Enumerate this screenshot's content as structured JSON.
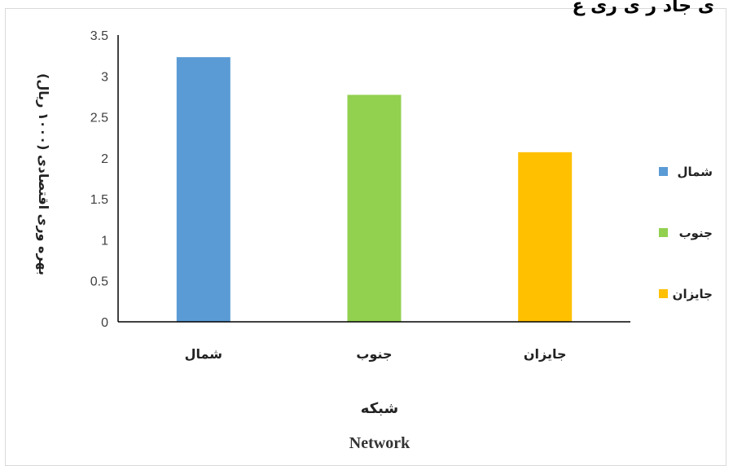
{
  "chart_data": {
    "type": "bar",
    "title": "ی جاد  ر  ی ری  ع",
    "categories": [
      "شمال",
      "جنوب",
      "جایزان"
    ],
    "values": [
      3.23,
      2.77,
      2.07
    ],
    "colors": [
      "#5b9bd5",
      "#92d050",
      "#ffc000"
    ],
    "ylabel": "بهره وری اقتصادی (۱۰۰۰ ریال)",
    "xlabel": "شبکه",
    "xlabel_secondary": "Network",
    "ylim": [
      0,
      3.5
    ],
    "yticks": [
      "0",
      "0.5",
      "1",
      "1.5",
      "2",
      "2.5",
      "3",
      "3.5"
    ],
    "grid": false,
    "legend": {
      "position": "right",
      "entries": [
        "شمال",
        "جنوب",
        "جایزان"
      ]
    }
  }
}
